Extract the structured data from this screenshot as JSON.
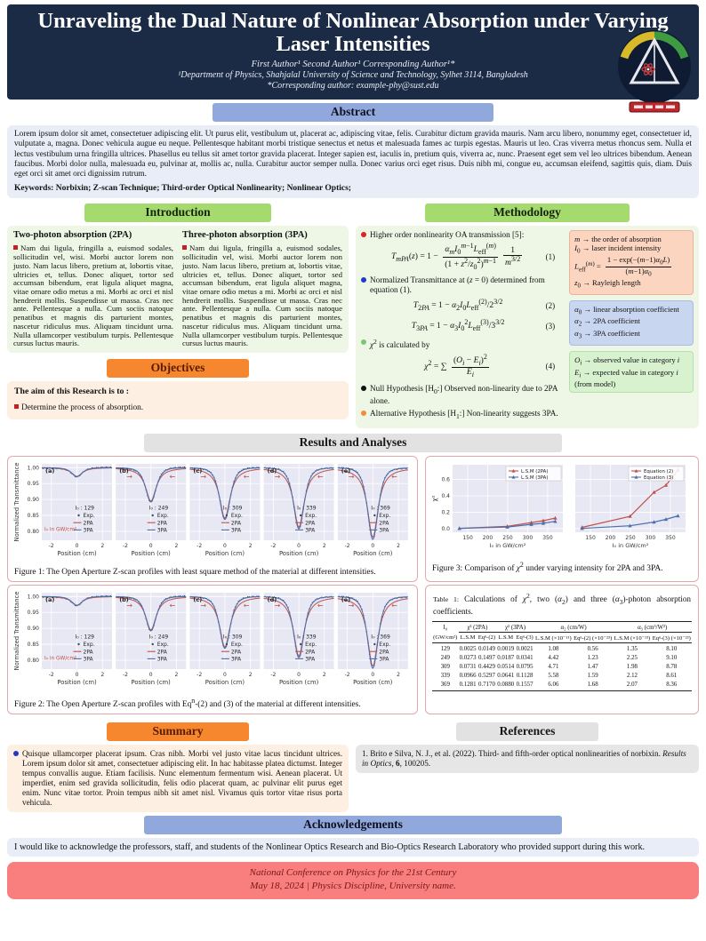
{
  "header": {
    "title": "Unraveling the Dual Nature of Nonlinear Absorption under Varying Laser Intensities",
    "authors": "First Author¹   Second Author¹   Corresponding Author¹*",
    "affiliation": "¹Department of Physics, Shahjalal University of Science and Technology, Sylhet 3114, Bangladesh",
    "corresponding": "*Corresponding author: example-phy@sust.edu"
  },
  "abstract": {
    "heading": "Abstract",
    "text": "Lorem ipsum dolor sit amet, consectetuer adipiscing elit. Ut purus elit, vestibulum ut, placerat ac, adipiscing vitae, felis. Curabitur dictum gravida mauris. Nam arcu libero, nonummy eget, consectetuer id, vulputate a, magna. Donec vehicula augue eu neque. Pellentesque habitant morbi tristique senectus et netus et malesuada fames ac turpis egestas. Mauris ut leo. Cras viverra metus rhoncus sem. Nulla et lectus vestibulum urna fringilla ultrices. Phasellus eu tellus sit amet tortor gravida placerat. Integer sapien est, iaculis in, pretium quis, viverra ac, nunc. Praesent eget sem vel leo ultrices bibendum. Aenean faucibus. Morbi dolor nulla, malesuada eu, pulvinar at, mollis ac, nulla. Curabitur auctor semper nulla. Donec varius orci eget risus. Duis nibh mi, congue eu, accumsan eleifend, sagittis quis, diam. Duis eget orci sit amet orci dignissim rutrum.",
    "keywords": "Keywords: Norbixin; Z-scan Technique; Third-order Optical Nonlinearity; Nonlinear Optics;"
  },
  "introduction": {
    "heading": "Introduction",
    "columns": [
      {
        "heading": "Two-photon absorption (2PA)",
        "text": "Nam dui ligula, fringilla a, euismod sodales, sollicitudin vel, wisi. Morbi auctor lorem non justo. Nam lacus libero, pretium at, lobortis vitae, ultricies et, tellus. Donec aliquet, tortor sed accumsan bibendum, erat ligula aliquet magna, vitae ornare odio metus a mi. Morbi ac orci et nisl hendrerit mollis. Suspendisse ut massa. Cras nec ante. Pellentesque a nulla. Cum sociis natoque penatibus et magnis dis parturient montes, nascetur ridiculus mus. Aliquam tincidunt urna. Nulla ullamcorper vestibulum turpis. Pellentesque cursus luctus mauris."
      },
      {
        "heading": "Three-photon absorption (3PA)",
        "text": "Nam dui ligula, fringilla a, euismod sodales, sollicitudin vel, wisi. Morbi auctor lorem non justo. Nam lacus libero, pretium at, lobortis vitae, ultricies et, tellus. Donec aliquet, tortor sed accumsan bibendum, erat ligula aliquet magna, vitae ornare odio metus a mi. Morbi ac orci et nisl hendrerit mollis. Suspendisse ut massa. Cras nec ante. Pellentesque a nulla. Cum sociis natoque penatibus et magnis dis parturient montes, nascetur ridiculus mus. Aliquam tincidunt urna. Nulla ullamcorper vestibulum turpis. Pellentesque cursus luctus mauris."
      }
    ]
  },
  "methodology": {
    "heading": "Methodology",
    "item1": "Higher order nonlinearity OA transmission [5]:",
    "item1_color": "#e0231e",
    "eq1_html": "<i>T<sub>mPA</sub></i>(<i>z</i>) = 1 − <span class='frac'><span class='fr-n'><i>α<sub>m</sub></i><i>I</i><sub>0</sub><sup><i>m</i>−1</sup><i>L</i><sub>eff</sub><sup>(<i>m</i>)</sup></span><span class='fr-d'>(1 + <i>z</i><sup>2</sup>/<i>z</i><sub>0</sub><sup>2</sup>)<sup><i>m</i>−1</sup></span></span><span class='frac'><span class='fr-n'>1</span><span class='fr-d'><i>m</i><sup>3/2</sup></span></span>",
    "eq1_no": "(1)",
    "item2_html": "Normalized Transmittance at (<i>z</i> = 0) determined from equation (1).",
    "item2_color": "#2438c8",
    "eq2_html": "<i>T</i><sub>2<i>PA</i></sub> = 1 − <i>α</i><sub>2</sub><i>I</i><sub>0</sub><i>L</i><sub>eff</sub><sup>(2)</sup>/2<sup>3/2</sup>",
    "eq2_no": "(2)",
    "eq3_html": "<i>T</i><sub>3<i>PA</i></sub> = 1 − <i>α</i><sub>3</sub><i>I</i><sub>0</sub><sup>2</sup><i>L</i><sub>eff</sub><sup>(3)</sup>/3<sup>3/2</sup>",
    "eq3_no": "(3)",
    "item3_html": "<i>χ</i><sup>2</sup> is calculated by",
    "item3_color": "#7cc576",
    "eq4_html": "<i>χ</i><sup>2</sup> = ∑ <span class='frac'><span class='fr-n'>(<i>O<sub>i</sub></i> − <i>E<sub>i</sub></i>)<sup>2</sup></span><span class='fr-d'><i>E<sub>i</sub></i></span></span>",
    "eq4_no": "(4)",
    "item4_html": "Null Hypothesis [H<sub>0</sub>:] Observed non-linearity due to 2PA alone.",
    "item4_color": "#111111",
    "item5_html": "Alternative Hypothesis [H<sub>1</sub>:] Non-linearity suggests 3PA.",
    "item5_color": "#f08c3a",
    "note1_html": "<i>m</i> → the order of absorption<br><i>I</i><sub>0</sub> → laser incident intensity<br><i>L</i><sub>eff</sub><sup>(<i>m</i>)</sup> = <span class='frac'><span class='fr-n'>1 − exp(−(<i>m</i>−1)<i>α</i><sub>0</sub><i>L</i>)</span><span class='fr-d'>(<i>m</i>−1)<i>α</i><sub>0</sub></span></span><br><i>z</i><sub>0</sub> → Rayleigh length",
    "note2_html": "<i>α</i><sub>0</sub> → linear absorption coefficient<br><i>α</i><sub>2</sub> → 2PA coefficient<br><i>α</i><sub>3</sub> → 3PA coefficient",
    "note3_html": "<i>O<sub>i</sub></i> → observed value in category <i>i</i><br><i>E<sub>i</sub></i> → expected value in category <i>i</i> (from model)"
  },
  "objectives": {
    "heading": "Objectives",
    "lead": "The aim of this Research is to :",
    "item": "Determine the process of absorption."
  },
  "results": {
    "heading": "Results and Analyses",
    "fig1_caption_html": "Figure 1: The Open Aperture Z-scan profiles with least square method of the material at different intensities.",
    "fig2_caption_html": "Figure 2: The Open Aperture Z-scan profiles with Eq<sup>n</sup>-(2) and (3) of the material at different intensities.",
    "fig3_caption_html": "Figure 3: Comparison of <i>χ</i><sup>2</sup> under varying intensity for 2PA and 3PA.",
    "table1_caption_html": "<span class='tlab'>Table 1:</span> Calculations of <i>χ</i><sup>2</sup>, two (<i>α</i><sub>2</sub>) and three (<i>α</i><sub>3</sub>)-photon absorption coefficients."
  },
  "summary": {
    "heading": "Summary",
    "text": "Quisque ullamcorper placerat ipsum. Cras nibh. Morbi vel justo vitae lacus tincidunt ultrices. Lorem ipsum dolor sit amet, consectetuer adipiscing elit. In hac habitasse platea dictumst. Integer tempus convallis augue. Etiam facilisis. Nunc elementum fermentum wisi. Aenean placerat. Ut imperdiet, enim sed gravida sollicitudin, felis odio placerat quam, ac pulvinar elit purus eget enim. Nunc vitae tortor. Proin tempus nibh sit amet nisl. Vivamus quis tortor vitae risus porta vehicula."
  },
  "references": {
    "heading": "References",
    "item_html": "1. Brito e Silva, N. J., et al. (2022). Third- and fifth-order optical nonlinearities of norbixin. <i>Results in Optics</i>, <b>6</b>, 100205."
  },
  "acknowledgements": {
    "heading": "Acknowledgements",
    "text": "I would like to acknowledge the professors, staff, and students of the Nonlinear Optics Research and Bio-Optics Research Laboratory who provided support during this work."
  },
  "footer": {
    "line1": "National Conference on Physics for the 21st Century",
    "line2": "May 18, 2024  | Physics Discipline, University name."
  },
  "chart_data": [
    {
      "id": "fig1",
      "type": "line",
      "subtype": "zscan",
      "title": "Open Aperture Z-scan profiles (least square method)",
      "xlabel": "Position (cm)",
      "ylabel": "Normalized Transmittance",
      "xlim": [
        -2.75,
        2.75
      ],
      "ylim": [
        0.772,
        1.012
      ],
      "xticks": [
        -2,
        0,
        2
      ],
      "yticks": [
        1.0,
        0.95,
        0.9,
        0.85,
        0.8
      ],
      "annotation": "I₀ in GW/cm²",
      "legend": [
        "Exp.",
        "2PA",
        "3PA"
      ],
      "colors": {
        "exp": "#3a4a68",
        "pa2": "#c0504a",
        "pa3": "#4a6fae"
      },
      "panels": [
        {
          "label": "(a)",
          "I0": "129",
          "dip": 0.028
        },
        {
          "label": "(b)",
          "I0": "249",
          "dip": 0.108
        },
        {
          "label": "(c)",
          "I0": "309",
          "dip": 0.163
        },
        {
          "label": "(d)",
          "I0": "339",
          "dip": 0.192
        },
        {
          "label": "(e)",
          "I0": "369",
          "dip": 0.225
        }
      ]
    },
    {
      "id": "fig2",
      "type": "line",
      "subtype": "zscan",
      "title": "Open Aperture Z-scan profiles (Eqn-(2) and (3))",
      "xlabel": "Position (cm)",
      "ylabel": "Normalized Transmittance",
      "xlim": [
        -2.75,
        2.75
      ],
      "ylim": [
        0.772,
        1.012
      ],
      "xticks": [
        -2,
        0,
        2
      ],
      "yticks": [
        1.0,
        0.95,
        0.9,
        0.85,
        0.8
      ],
      "annotation": "I₀ in GW/cm²",
      "legend": [
        "Exp.",
        "2PA",
        "3PA"
      ],
      "colors": {
        "exp": "#3a4a68",
        "pa2": "#c0504a",
        "pa3": "#4a6fae"
      },
      "panels": [
        {
          "label": "(a)",
          "I0": "129",
          "dip": 0.028
        },
        {
          "label": "(b)",
          "I0": "249",
          "dip": 0.108
        },
        {
          "label": "(c)",
          "I0": "309",
          "dip": 0.163
        },
        {
          "label": "(d)",
          "I0": "339",
          "dip": 0.192
        },
        {
          "label": "(e)",
          "I0": "369",
          "dip": 0.225
        }
      ]
    },
    {
      "id": "fig3",
      "type": "line",
      "subtype": "chi2",
      "title": "Comparison of chi-squared under varying intensity",
      "xlabel": "I₀ in GW/cm²",
      "ylabel": "χ²",
      "x": [
        129,
        249,
        309,
        339,
        369
      ],
      "xticks": [
        150,
        200,
        250,
        300,
        350
      ],
      "yticks": [
        0.0,
        0.2,
        0.4,
        0.6
      ],
      "xlim": [
        112,
        388
      ],
      "ylim": [
        -0.045,
        0.78
      ],
      "panels": [
        {
          "series": [
            {
              "name": "L.S.M (2PA)",
              "color": "#c0504a",
              "values": [
                0.0025,
                0.0273,
                0.0731,
                0.0966,
                0.1281
              ]
            },
            {
              "name": "L.S.M (3PA)",
              "color": "#4a6fae",
              "values": [
                0.0019,
                0.0187,
                0.0514,
                0.0641,
                0.088
              ]
            }
          ]
        },
        {
          "series": [
            {
              "name": "Equation (2)",
              "color": "#c0504a",
              "values": [
                0.0149,
                0.1497,
                0.4429,
                0.5297,
                0.717
              ]
            },
            {
              "name": "Equation (3)",
              "color": "#4a6fae",
              "values": [
                0.0021,
                0.0341,
                0.0795,
                0.1128,
                0.1557
              ]
            }
          ]
        }
      ]
    },
    {
      "id": "table1",
      "type": "table",
      "col_groups": [
        {
          "label": "I₀",
          "span": 1
        },
        {
          "label": "χ² (2PA)",
          "span": 2
        },
        {
          "label": "χ² (3PA)",
          "span": 2
        },
        {
          "label": "α₂ (cm/W)",
          "span": 2
        },
        {
          "label": "α₃ (cm³/W²)",
          "span": 2
        }
      ],
      "sub_headers": [
        "(GW/cm²)",
        "L.S.M",
        "Eqⁿ-(2)",
        "L.S.M",
        "Eqⁿ-(3)",
        "L.S.M (×10⁻¹¹)",
        "Eqⁿ-(2) (×10⁻²³)",
        "L.S.M (×10⁻¹³)",
        "Eqⁿ-(3) (×10⁻²³)"
      ],
      "rows": [
        [
          "129",
          "0.0025",
          "0.0149",
          "0.0019",
          "0.0021",
          "1.08",
          "0.56",
          "1.35",
          "8.10"
        ],
        [
          "249",
          "0.0273",
          "0.1497",
          "0.0187",
          "0.0341",
          "4.42",
          "1.23",
          "2.25",
          "9.10"
        ],
        [
          "309",
          "0.0731",
          "0.4429",
          "0.0514",
          "0.0795",
          "4.71",
          "1.47",
          "1.98",
          "8.78"
        ],
        [
          "339",
          "0.0966",
          "0.5297",
          "0.0641",
          "0.1128",
          "5.58",
          "1.59",
          "2.12",
          "8.61"
        ],
        [
          "369",
          "0.1281",
          "0.7170",
          "0.0880",
          "0.1557",
          "6.06",
          "1.68",
          "2.07",
          "8.36"
        ]
      ]
    }
  ]
}
